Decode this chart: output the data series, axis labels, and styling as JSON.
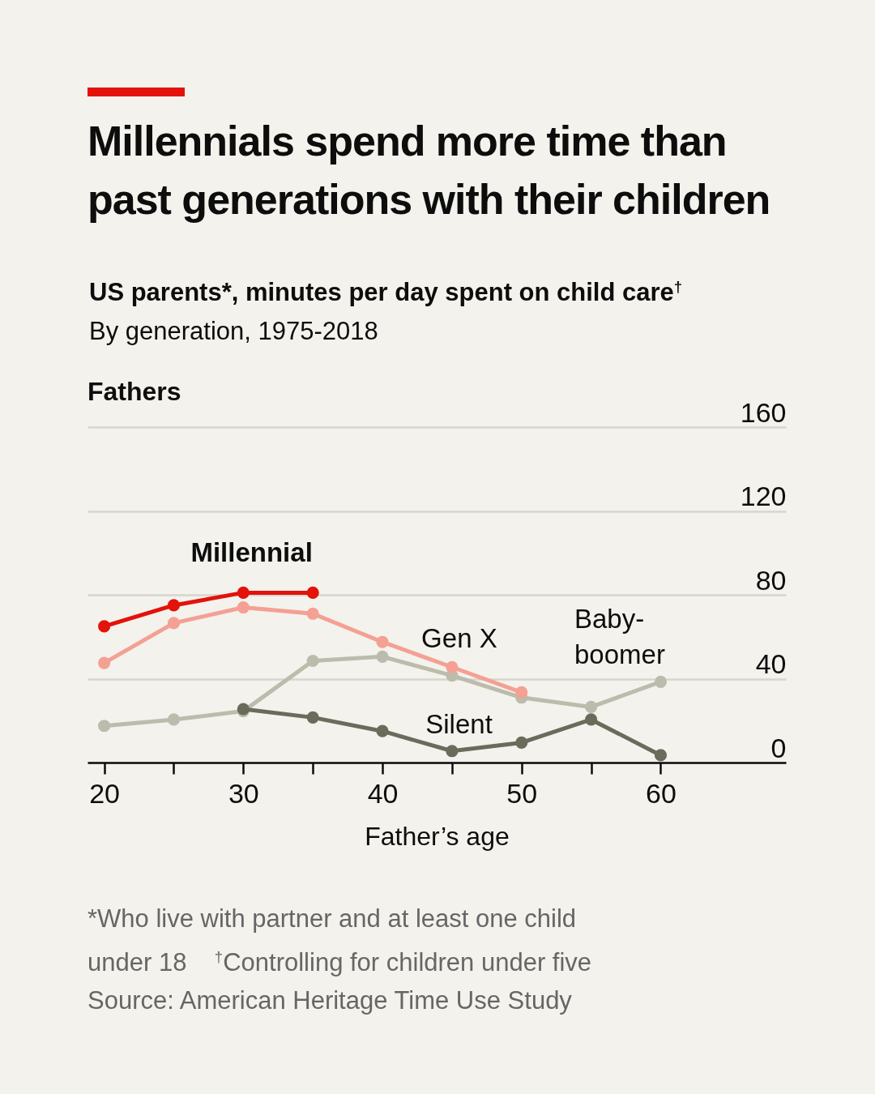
{
  "chart_data": {
    "type": "line",
    "title": "Millennials spend more time than past generations with their children",
    "subtitle": "US parents*, minutes per day spent on child care$^{†}$\nBy generation, 1975-2018",
    "xlabel": "Father’s age",
    "x": [
      20,
      25,
      30,
      35,
      40,
      45,
      50,
      55,
      60
    ],
    "series": [
      {
        "name": "Millennial",
        "color": "#e3120b",
        "values": [
          65,
          75,
          81,
          81,
          null,
          null,
          null,
          null,
          null
        ]
      },
      {
        "name": "Gen X",
        "color": "#f4a094",
        "values": [
          47.5,
          66.5,
          74,
          71,
          57.5,
          45.5,
          33.5,
          null,
          null
        ]
      },
      {
        "name": "Silent",
        "color": "#6b6b5b",
        "values": [
          null,
          null,
          25.5,
          21.5,
          15,
          5.5,
          9.5,
          20.5,
          3.5
        ]
      },
      {
        "name": "Baby-boomer",
        "color": "#bcbcad",
        "values": [
          17.5,
          20.5,
          24.5,
          48.5,
          50.5,
          41.5,
          31,
          26.5,
          38.5
        ]
      }
    ],
    "xlim": [
      18.8,
      69
    ],
    "xticks": [
      20,
      {
        "value": 25,
        "label": null
      },
      30,
      {
        "value": 35,
        "label": null
      },
      40,
      {
        "value": 45,
        "label": null
      },
      50,
      {
        "value": 55,
        "label": null
      },
      60
    ],
    "ylim": [
      0,
      160
    ],
    "yticks": [
      0,
      40,
      80,
      120,
      160
    ],
    "grid": "y",
    "marker": "circle",
    "line_style": "solid",
    "annotations": [
      "Fathers",
      "*Who live with partner and at least one child under 18 $^{†}$Controlling for children under five",
      "Source: American Heritage Time Use Study"
    ]
  }
}
